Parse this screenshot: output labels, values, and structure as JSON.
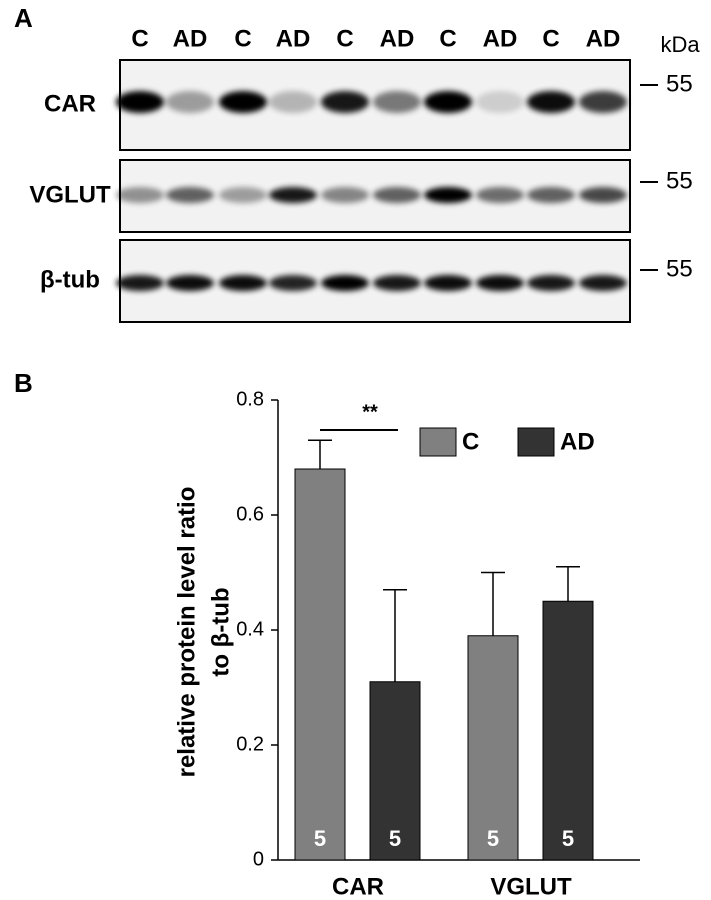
{
  "blot": {
    "panel": "A",
    "lanes": [
      "C",
      "AD",
      "C",
      "AD",
      "C",
      "AD",
      "C",
      "AD",
      "C",
      "AD"
    ],
    "unit": "kDa",
    "rows": [
      {
        "label": "CAR",
        "marker": 55
      },
      {
        "label": "VGLUT",
        "marker": 55
      },
      {
        "label": "β-tub",
        "marker": 55
      }
    ]
  },
  "chart_data": {
    "type": "bar",
    "panel": "B",
    "ylabel": [
      "relative protein level ratio",
      "to β-tub"
    ],
    "categories": [
      "CAR",
      "VGLUT"
    ],
    "series": [
      {
        "name": "C",
        "color": "#808080",
        "values": [
          0.68,
          0.39
        ],
        "errors": [
          0.05,
          0.11
        ],
        "n": [
          5,
          5
        ]
      },
      {
        "name": "AD",
        "color": "#333333",
        "values": [
          0.31,
          0.45
        ],
        "errors": [
          0.16,
          0.06
        ],
        "n": [
          5,
          5
        ]
      }
    ],
    "ylim": [
      0,
      0.8
    ],
    "yticks": [
      0,
      0.2,
      0.4,
      0.6,
      0.8
    ],
    "annotation": "**"
  }
}
